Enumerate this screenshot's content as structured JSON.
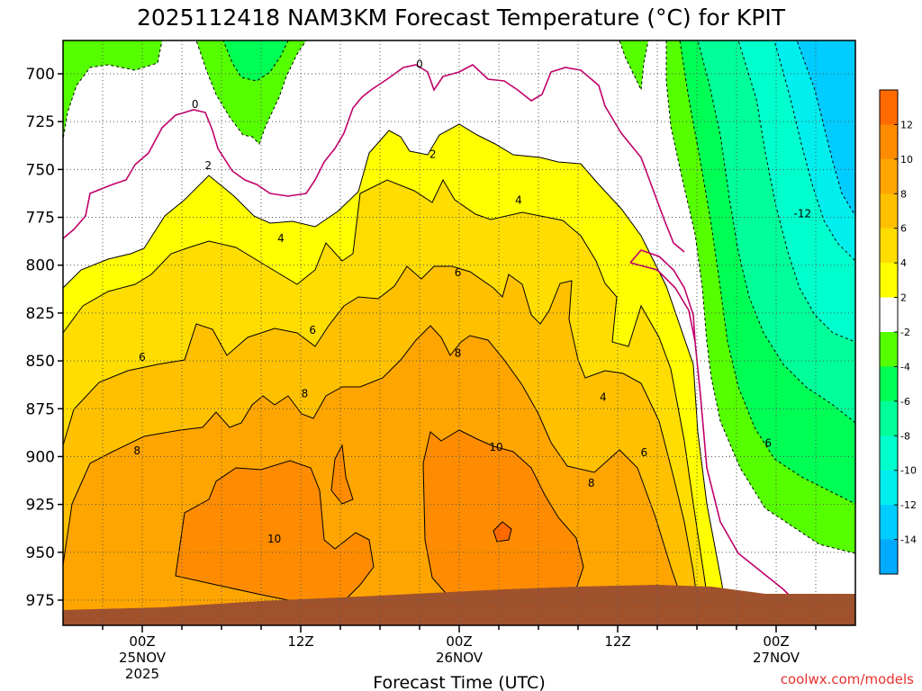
{
  "chart_data": {
    "type": "heatmap",
    "title": "2025112418 NAM3KM Forecast Temperature (°C) for KPIT",
    "xlabel": "Forecast Time (UTC)",
    "ylabel": "",
    "x_ticks": [
      {
        "hour": 6,
        "lines": [
          "00Z",
          "25NOV",
          "2025"
        ]
      },
      {
        "hour": 18,
        "lines": [
          "12Z"
        ]
      },
      {
        "hour": 30,
        "lines": [
          "00Z",
          "26NOV"
        ]
      },
      {
        "hour": 42,
        "lines": [
          "12Z"
        ]
      },
      {
        "hour": 54,
        "lines": [
          "00Z",
          "27NOV"
        ]
      }
    ],
    "xlim": [
      0,
      60
    ],
    "y_ticks": [
      700,
      725,
      750,
      775,
      800,
      825,
      850,
      875,
      900,
      925,
      950,
      975
    ],
    "ylim": [
      688,
      988
    ],
    "colorbar": {
      "ticks": [
        12,
        10,
        8,
        6,
        4,
        2,
        -2,
        -4,
        -6,
        -8,
        -10,
        -12,
        -14
      ],
      "bins": [
        {
          "range": [
            12,
            14
          ],
          "color": "#ff6a00"
        },
        {
          "range": [
            10,
            12
          ],
          "color": "#ff8c00"
        },
        {
          "range": [
            8,
            10
          ],
          "color": "#ffa500"
        },
        {
          "range": [
            6,
            8
          ],
          "color": "#ffc000"
        },
        {
          "range": [
            4,
            6
          ],
          "color": "#ffdd00"
        },
        {
          "range": [
            2,
            4
          ],
          "color": "#ffff00"
        },
        {
          "range": [
            -2,
            2
          ],
          "color": "#ffffff"
        },
        {
          "range": [
            -4,
            -2
          ],
          "color": "#55ff00"
        },
        {
          "range": [
            -6,
            -4
          ],
          "color": "#00ff55"
        },
        {
          "range": [
            -8,
            -6
          ],
          "color": "#00ff99"
        },
        {
          "range": [
            -10,
            -8
          ],
          "color": "#00ffcc"
        },
        {
          "range": [
            -12,
            -10
          ],
          "color": "#00eeee"
        },
        {
          "range": [
            -14,
            -12
          ],
          "color": "#00ccff"
        },
        {
          "range": [
            -16,
            -14
          ],
          "color": "#00aaff"
        }
      ]
    },
    "contour_labels": [
      {
        "text": "0",
        "hour": 27.0,
        "p": 695
      },
      {
        "text": "0",
        "hour": 10.0,
        "p": 716
      },
      {
        "text": "2",
        "hour": 11.0,
        "p": 748
      },
      {
        "text": "2",
        "hour": 28.0,
        "p": 742
      },
      {
        "text": "4",
        "hour": 34.5,
        "p": 766
      },
      {
        "text": "4",
        "hour": 16.5,
        "p": 786
      },
      {
        "text": "6",
        "hour": 29.9,
        "p": 804
      },
      {
        "text": "6",
        "hour": 6.0,
        "p": 848
      },
      {
        "text": "6",
        "hour": 18.9,
        "p": 834
      },
      {
        "text": "8",
        "hour": 18.3,
        "p": 867
      },
      {
        "text": "8",
        "hour": 29.9,
        "p": 846
      },
      {
        "text": "4",
        "hour": 40.9,
        "p": 869
      },
      {
        "text": "10",
        "hour": 32.8,
        "p": 895
      },
      {
        "text": "6",
        "hour": 44.0,
        "p": 898
      },
      {
        "text": "8",
        "hour": 5.6,
        "p": 897
      },
      {
        "text": "8",
        "hour": 40.0,
        "p": 914
      },
      {
        "text": "6",
        "hour": 53.4,
        "p": 893
      },
      {
        "text": "-12",
        "hour": 56.0,
        "p": 773
      },
      {
        "text": "10",
        "hour": 16.0,
        "p": 943
      }
    ],
    "background_color": "#ffffff",
    "terrain_color": "#a0522d",
    "grid": true,
    "legend": "right"
  },
  "credit": "coolwx.com/models"
}
